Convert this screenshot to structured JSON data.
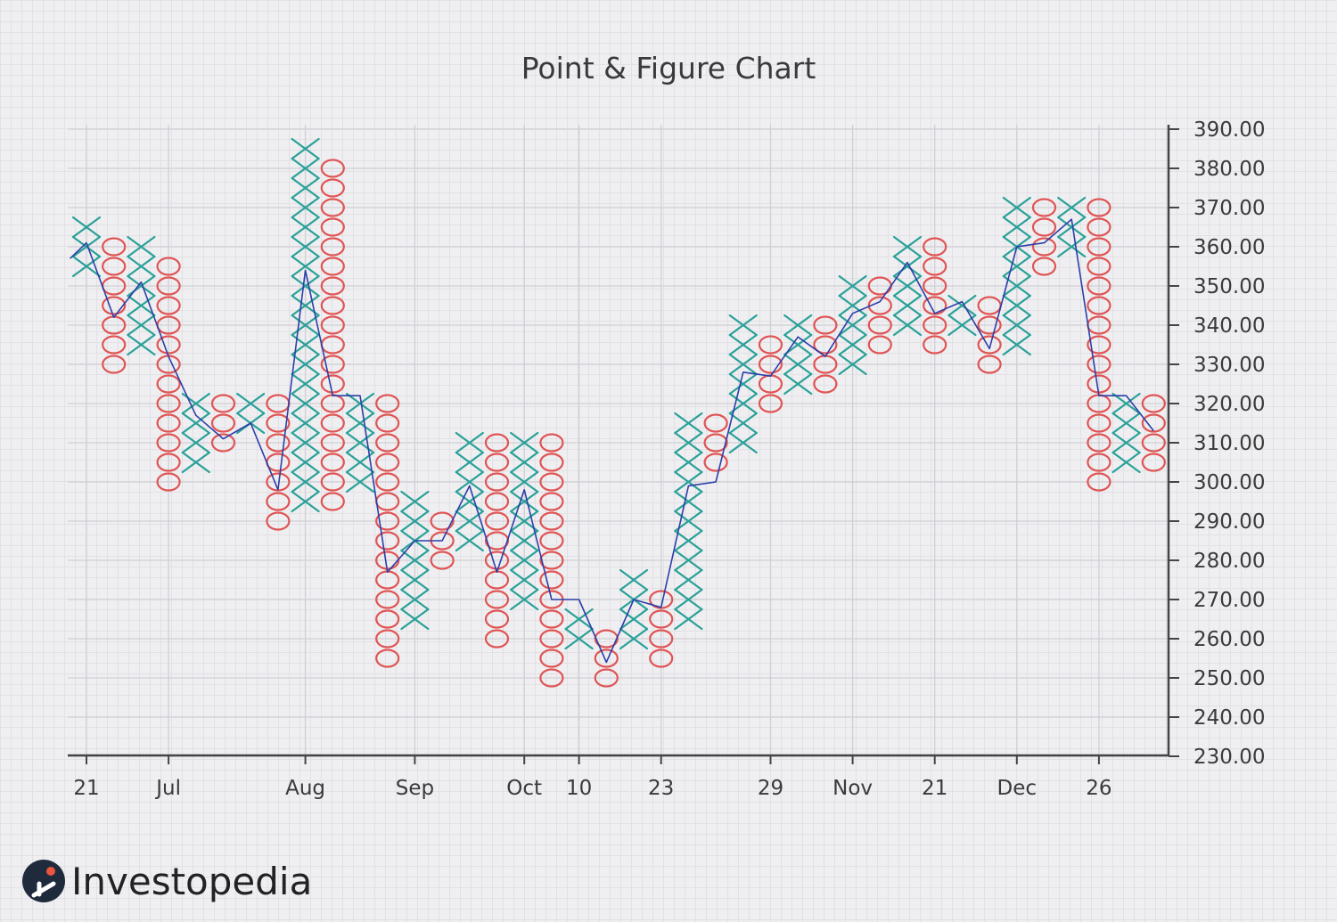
{
  "chart_data": {
    "type": "point-and-figure",
    "title": "Point & Figure Chart",
    "box_size": 5,
    "ylim": [
      230,
      390
    ],
    "y_ticks": [
      "390.00",
      "380.00",
      "370.00",
      "360.00",
      "350.00",
      "340.00",
      "330.00",
      "320.00",
      "310.00",
      "300.00",
      "290.00",
      "280.00",
      "270.00",
      "260.00",
      "250.00",
      "240.00",
      "230.00"
    ],
    "x_ticks": [
      {
        "label": "21",
        "col": 0
      },
      {
        "label": "Jul",
        "col": 3
      },
      {
        "label": "Aug",
        "col": 8
      },
      {
        "label": "Sep",
        "col": 12
      },
      {
        "label": "Oct",
        "col": 16
      },
      {
        "label": "10",
        "col": 18
      },
      {
        "label": "23",
        "col": 21
      },
      {
        "label": "29",
        "col": 25
      },
      {
        "label": "Nov",
        "col": 28
      },
      {
        "label": "21",
        "col": 31
      },
      {
        "label": "Dec",
        "col": 34
      },
      {
        "label": "26",
        "col": 37
      }
    ],
    "columns": [
      {
        "type": "X",
        "low": 355,
        "high": 365
      },
      {
        "type": "O",
        "low": 330,
        "high": 360
      },
      {
        "type": "X",
        "low": 335,
        "high": 360
      },
      {
        "type": "O",
        "low": 300,
        "high": 355
      },
      {
        "type": "X",
        "low": 305,
        "high": 320
      },
      {
        "type": "O",
        "low": 310,
        "high": 320
      },
      {
        "type": "X",
        "low": 315,
        "high": 320
      },
      {
        "type": "O",
        "low": 290,
        "high": 320
      },
      {
        "type": "X",
        "low": 295,
        "high": 385
      },
      {
        "type": "O",
        "low": 295,
        "high": 380
      },
      {
        "type": "X",
        "low": 300,
        "high": 320
      },
      {
        "type": "O",
        "low": 255,
        "high": 320
      },
      {
        "type": "X",
        "low": 265,
        "high": 295
      },
      {
        "type": "O",
        "low": 280,
        "high": 290
      },
      {
        "type": "X",
        "low": 285,
        "high": 310
      },
      {
        "type": "O",
        "low": 260,
        "high": 310
      },
      {
        "type": "X",
        "low": 270,
        "high": 310
      },
      {
        "type": "O",
        "low": 250,
        "high": 310
      },
      {
        "type": "X",
        "low": 260,
        "high": 265
      },
      {
        "type": "O",
        "low": 250,
        "high": 260
      },
      {
        "type": "X",
        "low": 260,
        "high": 275
      },
      {
        "type": "O",
        "low": 255,
        "high": 270
      },
      {
        "type": "X",
        "low": 265,
        "high": 315
      },
      {
        "type": "O",
        "low": 305,
        "high": 315
      },
      {
        "type": "X",
        "low": 310,
        "high": 340
      },
      {
        "type": "O",
        "low": 320,
        "high": 335
      },
      {
        "type": "X",
        "low": 325,
        "high": 340
      },
      {
        "type": "O",
        "low": 325,
        "high": 340
      },
      {
        "type": "X",
        "low": 330,
        "high": 350
      },
      {
        "type": "O",
        "low": 335,
        "high": 350
      },
      {
        "type": "X",
        "low": 340,
        "high": 360
      },
      {
        "type": "O",
        "low": 335,
        "high": 360
      },
      {
        "type": "X",
        "low": 340,
        "high": 345
      },
      {
        "type": "O",
        "low": 330,
        "high": 345
      },
      {
        "type": "X",
        "low": 335,
        "high": 370
      },
      {
        "type": "O",
        "low": 355,
        "high": 370
      },
      {
        "type": "X",
        "low": 360,
        "high": 370
      },
      {
        "type": "O",
        "low": 300,
        "high": 370
      },
      {
        "type": "X",
        "low": 305,
        "high": 320
      },
      {
        "type": "O",
        "low": 305,
        "high": 320
      }
    ],
    "price_line": [
      [
        -0.6,
        357
      ],
      [
        0,
        361
      ],
      [
        1,
        342
      ],
      [
        2,
        351
      ],
      [
        3,
        332
      ],
      [
        4,
        317
      ],
      [
        5,
        311
      ],
      [
        6,
        315
      ],
      [
        7,
        298
      ],
      [
        8,
        354
      ],
      [
        9,
        322
      ],
      [
        10,
        322
      ],
      [
        11,
        277
      ],
      [
        12,
        285
      ],
      [
        13,
        285
      ],
      [
        14,
        299
      ],
      [
        15,
        277
      ],
      [
        16,
        298
      ],
      [
        17,
        270
      ],
      [
        18,
        270
      ],
      [
        19,
        254
      ],
      [
        20,
        270
      ],
      [
        21,
        268
      ],
      [
        22,
        299
      ],
      [
        23,
        300
      ],
      [
        24,
        328
      ],
      [
        25,
        327
      ],
      [
        26,
        337
      ],
      [
        27,
        332
      ],
      [
        28,
        343
      ],
      [
        29,
        346
      ],
      [
        30,
        356
      ],
      [
        31,
        343
      ],
      [
        32,
        346
      ],
      [
        33,
        334
      ],
      [
        34,
        360
      ],
      [
        35,
        361
      ],
      [
        36,
        367
      ],
      [
        37,
        322
      ],
      [
        38,
        322
      ],
      [
        39,
        313
      ]
    ],
    "colors": {
      "x_mark": "#2aa198",
      "o_mark": "#e05454",
      "price_line": "#2c3ea8",
      "axis": "#444444",
      "grid": "#cfcfd6"
    }
  },
  "brand": {
    "name": "Investopedia"
  }
}
